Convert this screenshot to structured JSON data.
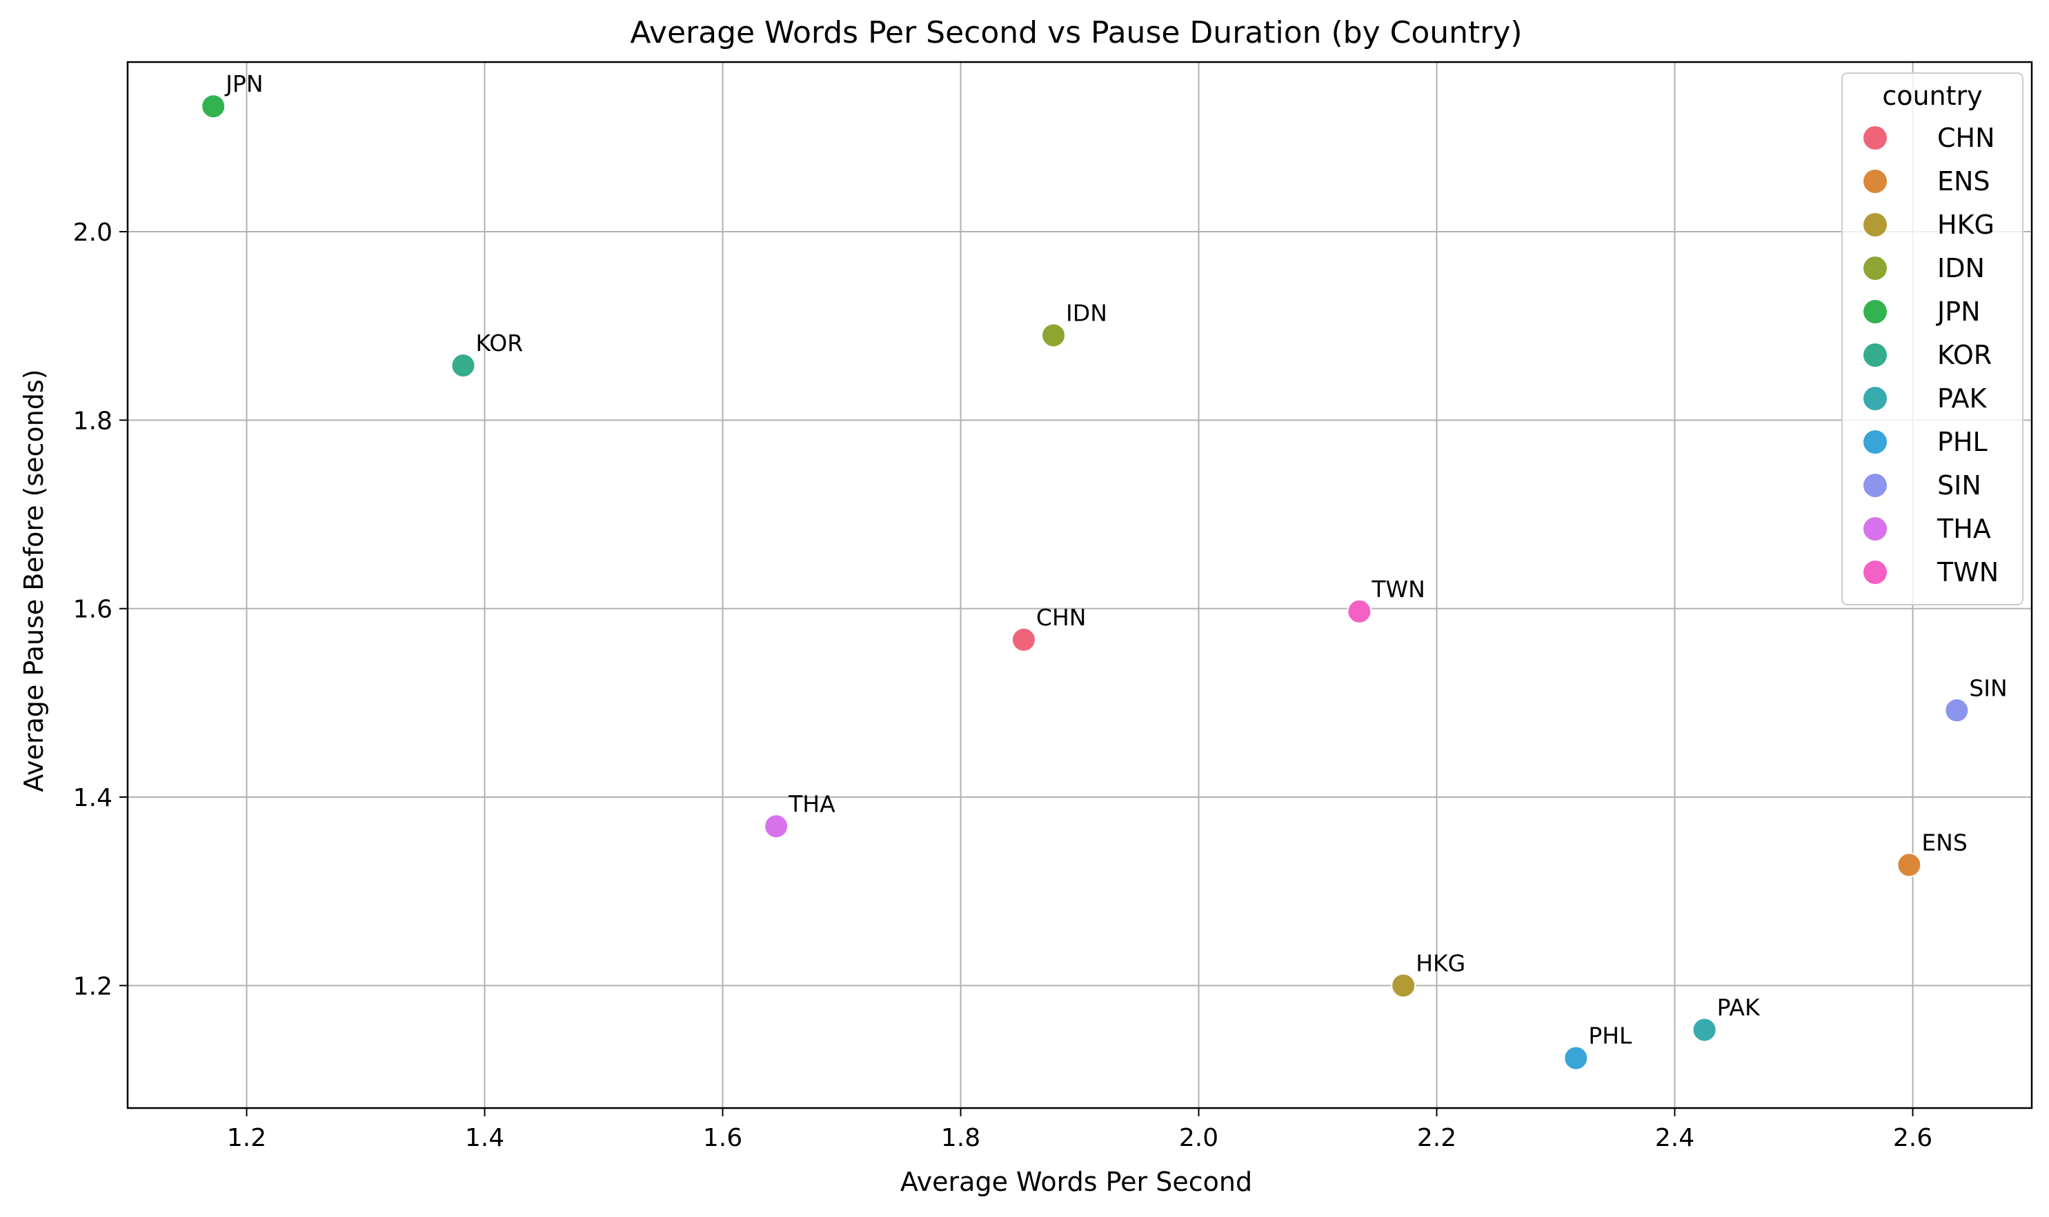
{
  "chart_data": {
    "type": "scatter",
    "title": "Average Words Per Second vs Pause Duration (by Country)",
    "xlabel": "Average Words Per Second",
    "ylabel": "Average Pause Before (seconds)",
    "xlim": [
      1.1,
      2.7
    ],
    "ylim": [
      1.07,
      2.18
    ],
    "xticks": [
      1.2,
      1.4,
      1.6,
      1.8,
      2.0,
      2.2,
      2.4,
      2.6
    ],
    "xtick_labels": [
      "1.2",
      "1.4",
      "1.6",
      "1.8",
      "2.0",
      "2.2",
      "2.4",
      "2.6"
    ],
    "yticks": [
      1.2,
      1.4,
      1.6,
      1.8,
      2.0
    ],
    "ytick_labels": [
      "1.2",
      "1.4",
      "1.6",
      "1.8",
      "2.0"
    ],
    "grid": true,
    "legend": {
      "title": "country",
      "placement": "top-right"
    },
    "points": [
      {
        "label": "CHN",
        "x": 1.853,
        "y": 1.567,
        "color": "#f0647a"
      },
      {
        "label": "ENS",
        "x": 2.597,
        "y": 1.328,
        "color": "#da8838"
      },
      {
        "label": "HKG",
        "x": 2.172,
        "y": 1.2,
        "color": "#b29a35"
      },
      {
        "label": "IDN",
        "x": 1.878,
        "y": 1.89,
        "color": "#8ea532"
      },
      {
        "label": "JPN",
        "x": 1.172,
        "y": 2.133,
        "color": "#33b250"
      },
      {
        "label": "KOR",
        "x": 1.382,
        "y": 1.858,
        "color": "#35ad8d"
      },
      {
        "label": "PAK",
        "x": 2.425,
        "y": 1.153,
        "color": "#37abae"
      },
      {
        "label": "PHL",
        "x": 2.317,
        "y": 1.123,
        "color": "#38a4d8"
      },
      {
        "label": "SIN",
        "x": 2.637,
        "y": 1.492,
        "color": "#8c95ed"
      },
      {
        "label": "THA",
        "x": 1.645,
        "y": 1.369,
        "color": "#d772ec"
      },
      {
        "label": "TWN",
        "x": 2.135,
        "y": 1.597,
        "color": "#f560c4"
      }
    ]
  }
}
